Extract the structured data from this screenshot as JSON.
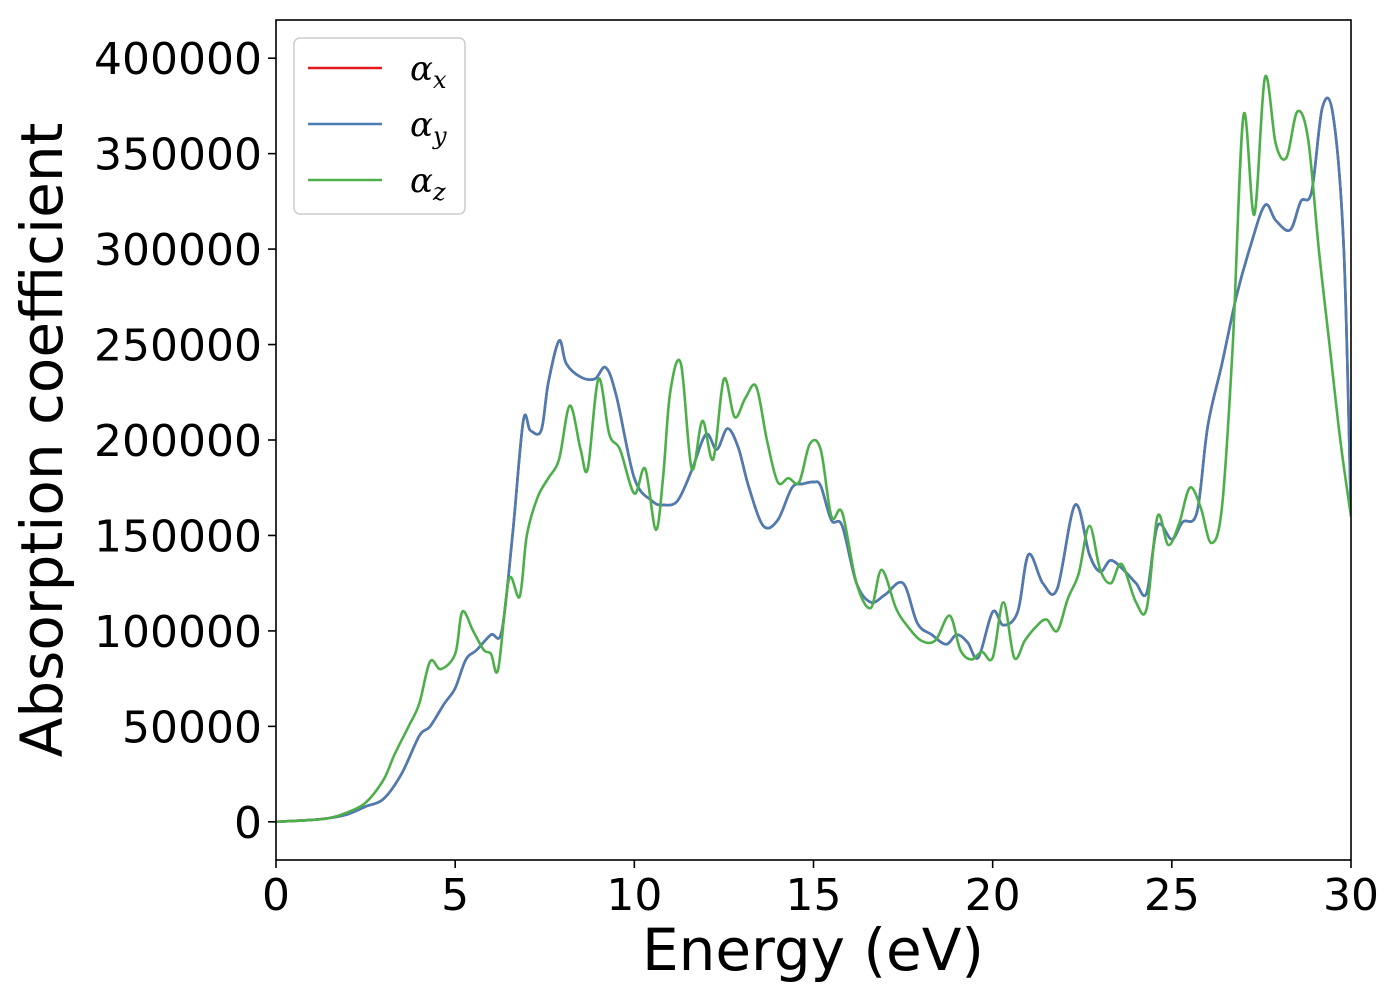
{
  "chart_data": {
    "type": "line",
    "xlabel": "Energy (eV)",
    "ylabel": "Absorption coefficient",
    "xlim": [
      0,
      30
    ],
    "ylim": [
      -20000,
      420000
    ],
    "xticks": [
      "0",
      "5",
      "10",
      "15",
      "20",
      "25",
      "30"
    ],
    "yticks": [
      "0",
      "50000",
      "100000",
      "150000",
      "200000",
      "250000",
      "300000",
      "350000",
      "400000"
    ],
    "grid": false,
    "legend_position": "top-left",
    "series": [
      {
        "name": "α",
        "subscript": "x",
        "color": "#e41a1c",
        "x": [
          0,
          1,
          1.5,
          2,
          2.5,
          3,
          3.5,
          4,
          4.3,
          4.7,
          5,
          5.3,
          5.6,
          6,
          6.3,
          6.6,
          6.9,
          7.1,
          7.4,
          7.6,
          7.9,
          8.1,
          8.5,
          8.9,
          9.2,
          9.5,
          10,
          10.5,
          10.8,
          11.2,
          11.6,
          12,
          12.3,
          12.6,
          12.9,
          13.2,
          13.6,
          14,
          14.4,
          14.7,
          15,
          15.2,
          15.5,
          15.8,
          16.2,
          16.6,
          17,
          17.5,
          17.9,
          18.3,
          18.7,
          19,
          19.3,
          19.6,
          20,
          20.3,
          20.7,
          21,
          21.4,
          21.8,
          22.3,
          22.7,
          23,
          23.3,
          23.7,
          24,
          24.3,
          24.6,
          25,
          25.3,
          25.7,
          26,
          26.4,
          26.8,
          27.2,
          27.6,
          27.9,
          28.3,
          28.6,
          28.9,
          29.2,
          29.5,
          29.8,
          30
        ],
        "y": [
          0,
          1000,
          2000,
          4000,
          8000,
          12000,
          25000,
          45000,
          50000,
          62000,
          70000,
          85000,
          90000,
          98000,
          100000,
          150000,
          210000,
          205000,
          205000,
          230000,
          252000,
          240000,
          233000,
          232000,
          238000,
          223000,
          180000,
          168000,
          166000,
          168000,
          184000,
          203000,
          195000,
          206000,
          196000,
          175000,
          155000,
          158000,
          175000,
          177000,
          178000,
          176000,
          158000,
          155000,
          125000,
          115000,
          119000,
          125000,
          104000,
          98000,
          93000,
          98000,
          94000,
          86000,
          110000,
          103000,
          110000,
          140000,
          125000,
          122000,
          166000,
          140000,
          131000,
          137000,
          131000,
          125000,
          120000,
          155000,
          148000,
          157000,
          162000,
          207000,
          240000,
          275000,
          302000,
          323000,
          315000,
          310000,
          325000,
          330000,
          374000,
          370000,
          300000,
          160000
        ]
      },
      {
        "name": "α",
        "subscript": "y",
        "color": "#4a7db3",
        "x": [
          0,
          1,
          1.5,
          2,
          2.5,
          3,
          3.5,
          4,
          4.3,
          4.7,
          5,
          5.3,
          5.6,
          6,
          6.3,
          6.6,
          6.9,
          7.1,
          7.4,
          7.6,
          7.9,
          8.1,
          8.5,
          8.9,
          9.2,
          9.5,
          10,
          10.5,
          10.8,
          11.2,
          11.6,
          12,
          12.3,
          12.6,
          12.9,
          13.2,
          13.6,
          14,
          14.4,
          14.7,
          15,
          15.2,
          15.5,
          15.8,
          16.2,
          16.6,
          17,
          17.5,
          17.9,
          18.3,
          18.7,
          19,
          19.3,
          19.6,
          20,
          20.3,
          20.7,
          21,
          21.4,
          21.8,
          22.3,
          22.7,
          23,
          23.3,
          23.7,
          24,
          24.3,
          24.6,
          25,
          25.3,
          25.7,
          26,
          26.4,
          26.8,
          27.2,
          27.6,
          27.9,
          28.3,
          28.6,
          28.9,
          29.2,
          29.5,
          29.8,
          30
        ],
        "y": [
          0,
          1000,
          2000,
          4000,
          8000,
          12000,
          25000,
          45000,
          50000,
          62000,
          70000,
          85000,
          90000,
          98000,
          100000,
          150000,
          210000,
          205000,
          205000,
          230000,
          252000,
          240000,
          233000,
          232000,
          238000,
          223000,
          180000,
          168000,
          166000,
          168000,
          184000,
          203000,
          195000,
          206000,
          196000,
          175000,
          155000,
          158000,
          175000,
          177000,
          178000,
          176000,
          158000,
          155000,
          125000,
          115000,
          119000,
          125000,
          104000,
          98000,
          93000,
          98000,
          94000,
          86000,
          110000,
          103000,
          110000,
          140000,
          125000,
          122000,
          166000,
          140000,
          131000,
          137000,
          131000,
          125000,
          120000,
          155000,
          148000,
          157000,
          162000,
          207000,
          240000,
          275000,
          302000,
          323000,
          315000,
          310000,
          325000,
          330000,
          374000,
          370000,
          300000,
          160000
        ]
      },
      {
        "name": "α",
        "subscript": "z",
        "color": "#4daf4a",
        "x": [
          0,
          1,
          1.5,
          2,
          2.5,
          3,
          3.3,
          3.7,
          4,
          4.3,
          4.6,
          5,
          5.2,
          5.5,
          5.8,
          6,
          6.2,
          6.5,
          6.8,
          7,
          7.3,
          7.6,
          7.9,
          8.2,
          8.5,
          8.7,
          9,
          9.3,
          9.6,
          10,
          10.3,
          10.6,
          10.8,
          11,
          11.3,
          11.6,
          11.9,
          12.2,
          12.5,
          12.8,
          13.1,
          13.4,
          13.7,
          14,
          14.3,
          14.6,
          14.9,
          15.2,
          15.5,
          15.8,
          16.2,
          16.6,
          16.9,
          17.3,
          17.6,
          18,
          18.4,
          18.8,
          19.1,
          19.4,
          19.7,
          20,
          20.3,
          20.6,
          20.9,
          21.2,
          21.5,
          21.8,
          22.1,
          22.4,
          22.7,
          23,
          23.3,
          23.6,
          24,
          24.3,
          24.6,
          24.9,
          25.2,
          25.5,
          25.8,
          26.1,
          26.4,
          26.7,
          27,
          27.3,
          27.6,
          27.9,
          28.2,
          28.5,
          28.8,
          29.1,
          29.4,
          29.7,
          30
        ],
        "y": [
          0,
          1000,
          2000,
          5000,
          10000,
          22000,
          35000,
          50000,
          62000,
          84000,
          80000,
          88000,
          110000,
          100000,
          90000,
          88000,
          80000,
          127000,
          118000,
          150000,
          170000,
          180000,
          190000,
          218000,
          195000,
          185000,
          232000,
          203000,
          195000,
          172000,
          185000,
          153000,
          180000,
          225000,
          240000,
          185000,
          210000,
          190000,
          232000,
          212000,
          222000,
          228000,
          200000,
          178000,
          180000,
          178000,
          198000,
          195000,
          160000,
          162000,
          125000,
          112000,
          132000,
          112000,
          103000,
          95000,
          95000,
          108000,
          90000,
          85000,
          89000,
          86000,
          115000,
          86000,
          95000,
          102000,
          106000,
          100000,
          117000,
          130000,
          155000,
          132000,
          125000,
          135000,
          115000,
          112000,
          160000,
          145000,
          156000,
          175000,
          165000,
          146000,
          165000,
          250000,
          370000,
          318000,
          390000,
          355000,
          348000,
          372000,
          358000,
          300000,
          250000,
          200000,
          160000
        ]
      }
    ]
  }
}
